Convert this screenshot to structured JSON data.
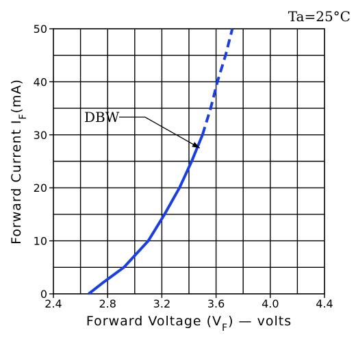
{
  "chart_data": {
    "type": "line",
    "title": "",
    "annotation_condition": "Ta=25°C",
    "xlabel": "Forward Voltage (V",
    "xlabel_sub": "F",
    "xlabel_tail": ") — volts",
    "ylabel": "Forward Current I",
    "ylabel_sub": "F",
    "ylabel_tail": "(mA)",
    "xlim": [
      2.4,
      4.4
    ],
    "ylim": [
      0,
      50
    ],
    "x_ticks": [
      "2.4",
      "2.8",
      "3.2",
      "3.6",
      "4.0",
      "4.4"
    ],
    "y_ticks": [
      "0",
      "10",
      "20",
      "30",
      "40",
      "50"
    ],
    "grid": true,
    "series": [
      {
        "name": "DBW",
        "color": "#1a3ee0",
        "solid_points": [
          [
            2.66,
            0
          ],
          [
            2.76,
            2
          ],
          [
            2.92,
            5
          ],
          [
            3.1,
            10
          ],
          [
            3.22,
            15
          ],
          [
            3.33,
            20
          ],
          [
            3.42,
            25
          ],
          [
            3.5,
            30
          ]
        ],
        "dashed_points": [
          [
            3.5,
            30
          ],
          [
            3.56,
            35
          ],
          [
            3.61,
            40
          ],
          [
            3.67,
            45
          ],
          [
            3.72,
            50
          ]
        ]
      }
    ],
    "series_label": "DBW",
    "series_label_arrow_target": [
      3.48,
      27.5
    ]
  }
}
